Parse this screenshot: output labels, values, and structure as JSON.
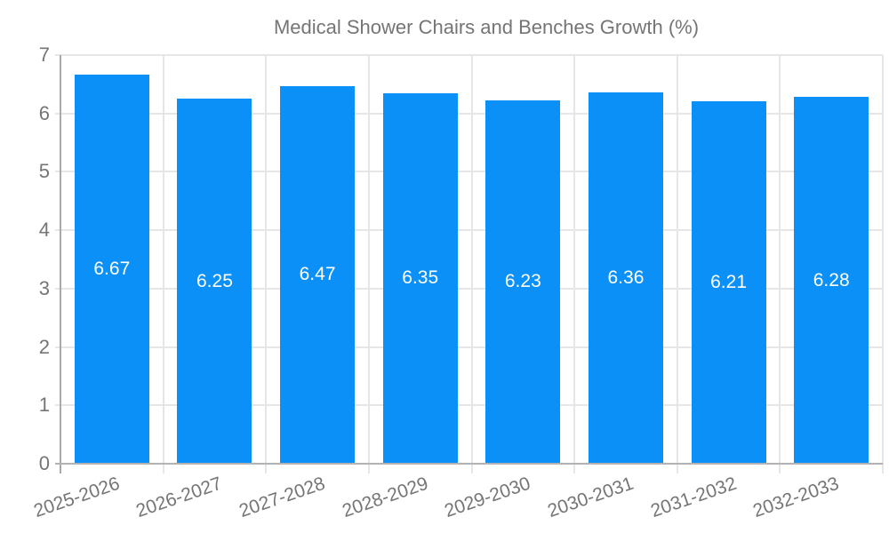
{
  "chart_data": {
    "type": "bar",
    "legend_label": "Medical Shower Chairs and Benches Growth (%)",
    "legend_position": "top",
    "categories": [
      "2025-2026",
      "2026-2027",
      "2027-2028",
      "2028-2029",
      "2029-2030",
      "2030-2031",
      "2031-2032",
      "2032-2033"
    ],
    "series": [
      {
        "name": "Medical Shower Chairs and Benches Growth (%)",
        "values": [
          6.67,
          6.25,
          6.47,
          6.35,
          6.23,
          6.36,
          6.21,
          6.28
        ]
      }
    ],
    "value_labels": [
      "6.67",
      "6.25",
      "6.47",
      "6.35",
      "6.23",
      "6.36",
      "6.21",
      "6.28"
    ],
    "xlabel": "",
    "ylabel": "",
    "ylim": [
      0,
      7
    ],
    "yticks": [
      0,
      1,
      2,
      3,
      4,
      5,
      6,
      7
    ],
    "grid": "horizontal and vertical",
    "colors": {
      "bar": "#0b90f8",
      "bar_value_text": "#ffffff",
      "axis_line": "#a9a9a9",
      "baseline": "#b3b3b3",
      "gridline": "#e6e6e6",
      "tick_text": "#757575",
      "legend_text": "#757575",
      "background": "#ffffff"
    }
  }
}
